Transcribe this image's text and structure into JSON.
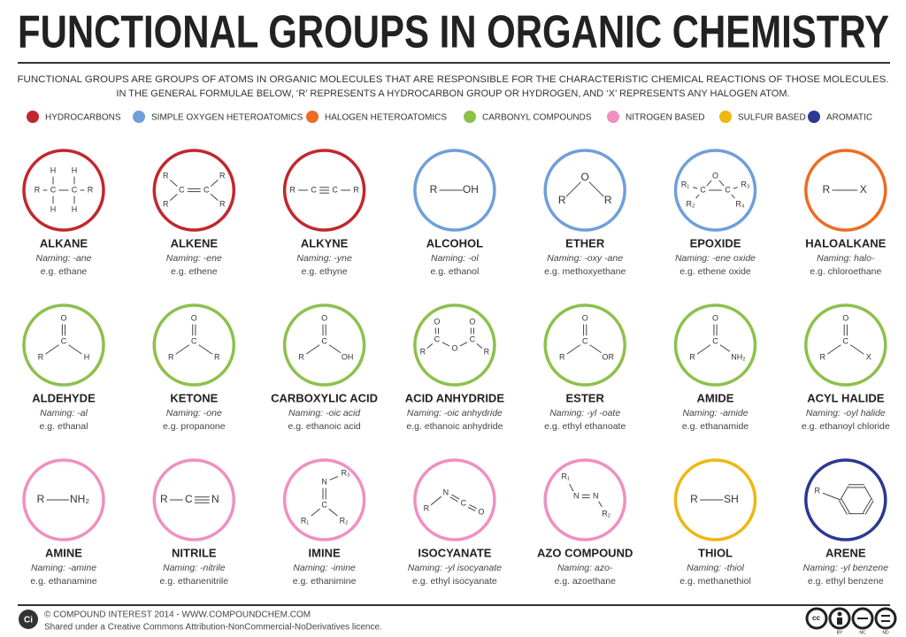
{
  "header": {
    "title": "FUNCTIONAL GROUPS IN ORGANIC CHEMISTRY",
    "description": [
      "FUNCTIONAL GROUPS ARE GROUPS OF ATOMS IN ORGANIC MOLECULES THAT ARE RESPONSIBLE FOR THE CHARACTERISTIC CHEMICAL REACTIONS OF THOSE MOLECULES.",
      "IN THE GENERAL FORMULAE BELOW, ‘R’ REPRESENTS A HYDROCARBON GROUP OR HYDROGEN, AND ‘X’ REPRESENTS ANY HALOGEN ATOM."
    ]
  },
  "legend": [
    {
      "label": "HYDROCARBONS",
      "color": "#c1272d"
    },
    {
      "label": "SIMPLE OXYGEN HETEROATOMICS",
      "color": "#6f9fd8"
    },
    {
      "label": "HALOGEN HETEROATOMICS",
      "color": "#ee6b23"
    },
    {
      "label": "CARBONYL COMPOUNDS",
      "color": "#8dc04b"
    },
    {
      "label": "NITROGEN BASED",
      "color": "#ef8fc2"
    },
    {
      "label": "SULFUR BASED",
      "color": "#eeb711"
    },
    {
      "label": "AROMATIC",
      "color": "#2b3990"
    }
  ],
  "groups": [
    {
      "name": "ALKANE",
      "naming": "Naming: -ane",
      "example": "e.g. ethane",
      "color": "#c1272d",
      "atoms": [
        "R",
        "C",
        "C",
        "R",
        "H",
        "H",
        "H",
        "H"
      ]
    },
    {
      "name": "ALKENE",
      "naming": "Naming: -ene",
      "example": "e.g. ethene",
      "color": "#c1272d",
      "atoms": [
        "C",
        "C",
        "R",
        "R",
        "R",
        "R"
      ]
    },
    {
      "name": "ALKYNE",
      "naming": "Naming: -yne",
      "example": "e.g. ethyne",
      "color": "#c1272d",
      "atoms": [
        "R",
        "C",
        "C",
        "R"
      ]
    },
    {
      "name": "ALCOHOL",
      "naming": "Naming: -ol",
      "example": "e.g. ethanol",
      "color": "#6f9fd8",
      "atoms": [
        "R",
        "OH"
      ]
    },
    {
      "name": "ETHER",
      "naming": "Naming: -oxy -ane",
      "example": "e.g. methoxyethane",
      "color": "#6f9fd8",
      "atoms": [
        "O",
        "R",
        "R"
      ]
    },
    {
      "name": "EPOXIDE",
      "naming": "Naming: -ene oxide",
      "example": "e.g. ethene oxide",
      "color": "#6f9fd8",
      "atoms": [
        "O",
        "C",
        "C",
        "R₁",
        "R₂",
        "R₃",
        "R₄"
      ]
    },
    {
      "name": "HALOALKANE",
      "naming": "Naming: halo-",
      "example": "e.g. chloroethane",
      "color": "#ee6b23",
      "atoms": [
        "R",
        "X"
      ]
    },
    {
      "name": "ALDEHYDE",
      "naming": "Naming: -al",
      "example": "e.g. ethanal",
      "color": "#8dc04b",
      "atoms": [
        "O",
        "C",
        "R",
        "H"
      ]
    },
    {
      "name": "KETONE",
      "naming": "Naming: -one",
      "example": "e.g. propanone",
      "color": "#8dc04b",
      "atoms": [
        "O",
        "C",
        "R",
        "R"
      ]
    },
    {
      "name": "CARBOXYLIC ACID",
      "naming": "Naming: -oic acid",
      "example": "e.g. ethanoic acid",
      "color": "#8dc04b",
      "atoms": [
        "O",
        "C",
        "R",
        "OH"
      ]
    },
    {
      "name": "ACID ANHYDRIDE",
      "naming": "Naming: -oic anhydride",
      "example": "e.g. ethanoic anhydride",
      "color": "#8dc04b",
      "atoms": [
        "O",
        "C",
        "R",
        "O",
        "C",
        "O",
        "R"
      ]
    },
    {
      "name": "ESTER",
      "naming": "Naming: -yl -oate",
      "example": "e.g. ethyl ethanoate",
      "color": "#8dc04b",
      "atoms": [
        "O",
        "C",
        "R",
        "OR"
      ]
    },
    {
      "name": "AMIDE",
      "naming": "Naming: -amide",
      "example": "e.g. ethanamide",
      "color": "#8dc04b",
      "atoms": [
        "O",
        "C",
        "R",
        "NH₂"
      ]
    },
    {
      "name": "ACYL HALIDE",
      "naming": "Naming: -oyl halide",
      "example": "e.g. ethanoyl chloride",
      "color": "#8dc04b",
      "atoms": [
        "O",
        "C",
        "R",
        "X"
      ]
    },
    {
      "name": "AMINE",
      "naming": "Naming: -amine",
      "example": "e.g. ethanamine",
      "color": "#ef8fc2",
      "atoms": [
        "R",
        "NH₂"
      ]
    },
    {
      "name": "NITRILE",
      "naming": "Naming: -nitrile",
      "example": "e.g. ethanenitrile",
      "color": "#ef8fc2",
      "atoms": [
        "R",
        "C",
        "N"
      ]
    },
    {
      "name": "IMINE",
      "naming": "Naming: -imine",
      "example": "e.g. ethanimine",
      "color": "#ef8fc2",
      "atoms": [
        "R₃",
        "N",
        "C",
        "R₁",
        "R₂"
      ]
    },
    {
      "name": "ISOCYANATE",
      "naming": "Naming: -yl isocyanate",
      "example": "e.g. ethyl isocyanate",
      "color": "#ef8fc2",
      "atoms": [
        "R",
        "N",
        "C",
        "O"
      ]
    },
    {
      "name": "AZO COMPOUND",
      "naming": "Naming: azo-",
      "example": "e.g. azoethane",
      "color": "#ef8fc2",
      "atoms": [
        "R₁",
        "N",
        "N",
        "R₂"
      ]
    },
    {
      "name": "THIOL",
      "naming": "Naming: -thiol",
      "example": "e.g. methanethiol",
      "color": "#eeb711",
      "atoms": [
        "R",
        "SH"
      ]
    },
    {
      "name": "ARENE",
      "naming": "Naming: -yl benzene",
      "example": "e.g. ethyl benzene",
      "color": "#2b3990",
      "atoms": [
        "R"
      ]
    }
  ],
  "footer": {
    "logo": "Ci",
    "copyright": "© COMPOUND INTEREST 2014 - WWW.COMPOUNDCHEM.COM",
    "licence": "Shared under a Creative Commons Attribution-NonCommercial-NoDerivatives licence.",
    "badges": [
      "BY",
      "NC",
      "ND"
    ]
  }
}
